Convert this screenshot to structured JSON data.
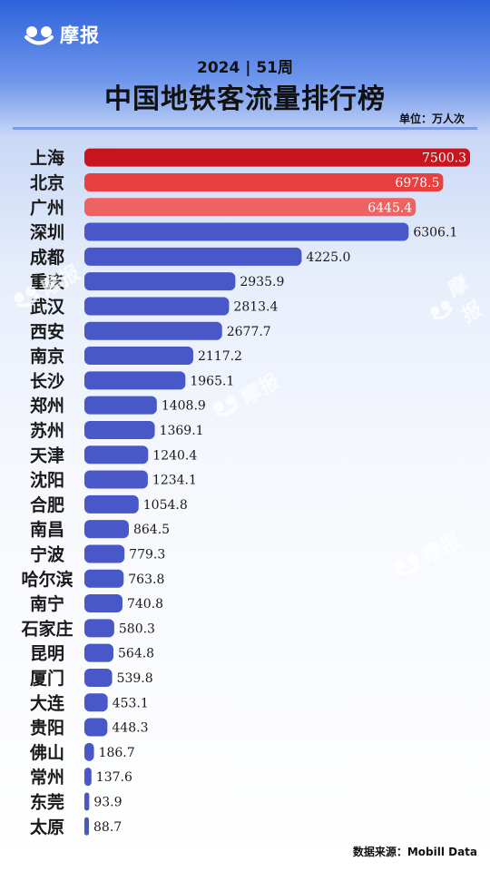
{
  "brand": {
    "name": "摩报",
    "logo_icon": "moobao-logo-icon"
  },
  "header": {
    "subtitle": "2024 | 51周",
    "title": "中国地铁客流量排行榜",
    "unit": "单位：万人次"
  },
  "source": "数据来源：Mobill Data",
  "watermarks": [
    "摩报",
    "摩报",
    "摩报",
    "摩报"
  ],
  "colors": {
    "top1": "#c8141c",
    "top2": "#ea3f3f",
    "top3": "#ef6262",
    "others": "#4858c9",
    "page_top": "#2f62dc"
  },
  "chart_data": {
    "type": "bar",
    "orientation": "horizontal",
    "title": "中国地铁客流量排行榜",
    "subtitle": "2024 | 51周",
    "unit": "单位：万人次",
    "categories": [
      "上海",
      "北京",
      "广州",
      "深圳",
      "成都",
      "重庆",
      "武汉",
      "西安",
      "南京",
      "长沙",
      "郑州",
      "苏州",
      "天津",
      "沈阳",
      "合肥",
      "南昌",
      "宁波",
      "哈尔滨",
      "南宁",
      "石家庄",
      "昆明",
      "厦门",
      "大连",
      "贵阳",
      "佛山",
      "常州",
      "东莞",
      "太原"
    ],
    "values": [
      7500.3,
      6978.5,
      6445.4,
      6306.1,
      4225.0,
      2935.9,
      2813.4,
      2677.7,
      2117.2,
      1965.1,
      1408.9,
      1369.1,
      1240.4,
      1234.1,
      1054.8,
      864.5,
      779.3,
      763.8,
      740.8,
      580.3,
      564.8,
      539.8,
      453.1,
      448.3,
      186.7,
      137.6,
      93.9,
      88.7
    ],
    "value_labels": [
      "7500.3",
      "6978.5",
      "6445.4",
      "6306.1",
      "4225.0",
      "2935.9",
      "2813.4",
      "2677.7",
      "2117.2",
      "1965.1",
      "1408.9",
      "1369.1",
      "1240.4",
      "1234.1",
      "1054.8",
      "864.5",
      "779.3",
      "763.8",
      "740.8",
      "580.3",
      "564.8",
      "539.8",
      "453.1",
      "448.3",
      "186.7",
      "137.6",
      "93.9",
      "88.7"
    ],
    "xlim": [
      0,
      7500.3
    ],
    "grid": false,
    "legend": "none"
  }
}
